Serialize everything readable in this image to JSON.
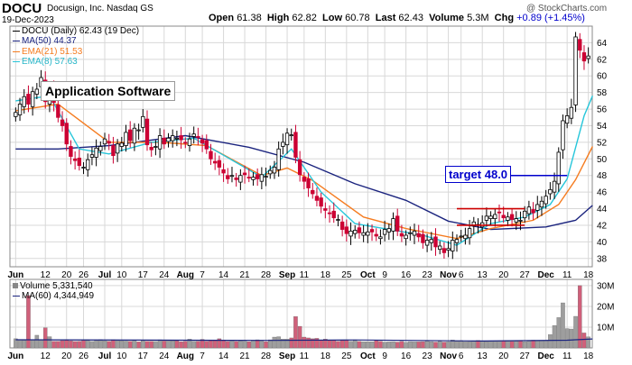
{
  "header": {
    "symbol": "DOCU",
    "company": "Docusign, Inc.  Nasdaq GS",
    "date": "19-Dec-2023",
    "open_label": "Open",
    "open": "61.38",
    "high_label": "High",
    "high": "62.82",
    "low_label": "Low",
    "low": "60.78",
    "last_label": "Last",
    "last": "62.43",
    "volume_label": "Volume",
    "volume": "5.3M",
    "chg_label": "Chg",
    "chg": "+0.89 (+1.45%)",
    "chg_color": "#0000cc",
    "watermark": "@ StockCharts.com"
  },
  "legend": {
    "price": "DOCU (Daily) 62.43 (19 Dec)",
    "ma50": "MA(50) 44.37",
    "ema21": "EMA(21) 51.53",
    "ema8": "EMA(8) 57.63",
    "volume": "Volume 5,331,540",
    "vol_ma60": "MA(60) 4,344,949"
  },
  "annotations": {
    "app_label": "Application Software",
    "target": "target 48.0"
  },
  "colors": {
    "up": "#000000",
    "down": "#cc0033",
    "ma50": "#1a237e",
    "ema21": "#f57c20",
    "ema8": "#26c6da",
    "target_line": "#0000cc",
    "resistance_line": "#cc0000",
    "grid": "#d8d8d8",
    "label_box_bg": "#ffffff"
  },
  "chart_data": {
    "type": "candlestick",
    "y_ticks": [
      38,
      40,
      42,
      44,
      46,
      48,
      50,
      52,
      54,
      56,
      58,
      60,
      62,
      64
    ],
    "ylim": [
      37,
      66
    ],
    "volume_ticks": [
      "10M",
      "20M",
      "30M"
    ],
    "volume_ylim": [
      0,
      33
    ],
    "x_labels": [
      "Jun",
      "12",
      "20",
      "26",
      "Jul",
      "10",
      "17",
      "24",
      "Aug",
      "7",
      "14",
      "21",
      "28",
      "Sep",
      "11",
      "18",
      "25",
      "Oct",
      "9",
      "16",
      "23",
      "Nov",
      "6",
      "13",
      "20",
      "27",
      "Dec",
      "11",
      "18"
    ],
    "x_label_index": [
      0,
      7,
      12,
      16,
      21,
      25,
      30,
      35,
      40,
      44,
      49,
      54,
      59,
      64,
      68,
      73,
      78,
      83,
      87,
      92,
      97,
      102,
      105,
      110,
      115,
      120,
      125,
      130,
      135
    ],
    "target_level": 48.0,
    "resistance_levels": [
      {
        "level": 44.0,
        "from": 104,
        "to": 120
      },
      {
        "level": 42.0,
        "from": 104,
        "to": 120
      }
    ],
    "series": [
      {
        "name": "DOCU",
        "kind": "candle",
        "close": [
          55.6,
          56.6,
          57.5,
          56.6,
          58.1,
          58.4,
          59.8,
          56.9,
          58.4,
          56.8,
          55.0,
          54.0,
          51.8,
          50.3,
          49.8,
          49.2,
          49.0,
          49.9,
          50.5,
          51.3,
          51.5,
          52.4,
          51.9,
          50.4,
          51.8,
          51.9,
          53.2,
          52.2,
          53.7,
          53.5,
          55.1,
          51.7,
          51.1,
          51.5,
          52.8,
          51.8,
          52.5,
          52.8,
          52.5,
          52.3,
          51.9,
          52.4,
          53.0,
          52.6,
          51.9,
          51.2,
          50.0,
          49.5,
          49.0,
          48.3,
          47.6,
          48.0,
          47.5,
          48.0,
          48.1,
          47.8,
          47.8,
          47.6,
          48.1,
          47.9,
          48.6,
          49.0,
          51.2,
          52.0,
          53.1,
          52.9,
          50.2,
          48.1,
          47.3,
          46.5,
          45.8,
          45.0,
          44.3,
          43.8,
          43.4,
          42.9,
          42.7,
          41.5,
          41.0,
          41.3,
          41.4,
          41.1,
          41.1,
          41.2,
          41.2,
          40.7,
          40.6,
          41.5,
          41.6,
          42.8,
          41.3,
          40.7,
          40.8,
          41.1,
          41.3,
          40.6,
          39.9,
          40.2,
          40.3,
          39.4,
          39.5,
          38.7,
          39.2,
          40.2,
          40.3,
          40.7,
          40.8,
          41.6,
          42.4,
          42.1,
          42.3,
          43.1,
          43.1,
          43.3,
          43.5,
          42.9,
          43.0,
          42.7,
          42.8,
          42.6,
          43.7,
          44.2,
          43.5,
          44.5,
          44.9,
          45.5,
          46.3,
          47.3,
          50.8,
          54.6,
          55.2,
          56.2,
          64.7,
          63.1,
          61.8,
          62.4
        ]
      },
      {
        "name": "Volume",
        "kind": "volume",
        "values": [
          4.4,
          3.9,
          3.7,
          25.2,
          3.9,
          6.1,
          4.0,
          9.7,
          5.4,
          3.2,
          3.2,
          3.5,
          3.8,
          3.4,
          3.1,
          3.2,
          3.6,
          3.6,
          3.1,
          3.6,
          4.0,
          3.4,
          3.2,
          3.9,
          3.5,
          3.4,
          3.3,
          3.2,
          3.6,
          2.9,
          3.4,
          3.2,
          3.2,
          3.1,
          3.9,
          3.3,
          3.6,
          3.4,
          3.4,
          3.0,
          3.2,
          4.2,
          3.1,
          3.2,
          4.1,
          3.2,
          3.5,
          3.7,
          4.4,
          3.7,
          3.1,
          3.7,
          3.1,
          3.5,
          3.2,
          3.0,
          3.6,
          3.9,
          3.3,
          3.0,
          3.9,
          5.2,
          5.4,
          4.2,
          4.2,
          4.8,
          15.1,
          10.4,
          5.2,
          4.8,
          4.4,
          4.6,
          3.8,
          4.2,
          3.7,
          3.8,
          3.2,
          3.7,
          3.8,
          3.2,
          3.6,
          3.1,
          3.0,
          3.0,
          3.0,
          3.7,
          3.2,
          2.8,
          2.9,
          3.0,
          2.8,
          3.1,
          2.7,
          3.0,
          2.9,
          2.9,
          3.0,
          3.4,
          3.0,
          2.8,
          3.1,
          2.8,
          2.9,
          3.8,
          3.2,
          3.5,
          2.9,
          3.0,
          3.3,
          3.6,
          3.2,
          3.0,
          3.1,
          3.3,
          3.1,
          3.4,
          3.2,
          3.1,
          3.2,
          3.6,
          3.0,
          3.6,
          3.7,
          3.4,
          3.5,
          3.6,
          6.4,
          10.8,
          14.6,
          21.7,
          9.3,
          9.1,
          15.2,
          30.0,
          7.2,
          5.3
        ]
      },
      {
        "name": "MA(50)",
        "kind": "line",
        "color_key": "ma50",
        "values": [
          [
            0,
            51.2
          ],
          [
            10,
            51.2
          ],
          [
            22,
            51.6
          ],
          [
            40,
            52.8
          ],
          [
            55,
            51.4
          ],
          [
            68,
            49.6
          ],
          [
            80,
            47.0
          ],
          [
            92,
            45.0
          ],
          [
            102,
            42.5
          ],
          [
            112,
            41.5
          ],
          [
            125,
            41.8
          ],
          [
            132,
            42.6
          ],
          [
            136,
            44.4
          ]
        ]
      },
      {
        "name": "EMA(21)",
        "kind": "line",
        "color_key": "ema21",
        "values": [
          [
            0,
            55.8
          ],
          [
            10,
            56.6
          ],
          [
            22,
            52.0
          ],
          [
            34,
            52.0
          ],
          [
            45,
            51.6
          ],
          [
            58,
            48.0
          ],
          [
            64,
            48.9
          ],
          [
            70,
            47.4
          ],
          [
            82,
            43.0
          ],
          [
            92,
            41.6
          ],
          [
            104,
            40.4
          ],
          [
            112,
            41.6
          ],
          [
            122,
            42.6
          ],
          [
            128,
            44.5
          ],
          [
            132,
            47.5
          ],
          [
            136,
            51.5
          ]
        ]
      },
      {
        "name": "EMA(8)",
        "kind": "line",
        "color_key": "ema8",
        "values": [
          [
            0,
            57.0
          ],
          [
            8,
            57.6
          ],
          [
            15,
            51.2
          ],
          [
            22,
            50.6
          ],
          [
            32,
            52.0
          ],
          [
            42,
            52.5
          ],
          [
            58,
            47.8
          ],
          [
            65,
            51.2
          ],
          [
            72,
            46.0
          ],
          [
            80,
            42.2
          ],
          [
            96,
            40.8
          ],
          [
            104,
            39.6
          ],
          [
            112,
            42.2
          ],
          [
            120,
            43.0
          ],
          [
            126,
            44.5
          ],
          [
            130,
            47.6
          ],
          [
            134,
            55.2
          ],
          [
            136,
            57.6
          ]
        ]
      },
      {
        "name": "MA(60) volume",
        "kind": "line",
        "values": [
          [
            0,
            3.9
          ],
          [
            60,
            3.6
          ],
          [
            80,
            3.8
          ],
          [
            110,
            3.3
          ],
          [
            130,
            3.7
          ],
          [
            136,
            4.3
          ]
        ]
      }
    ]
  }
}
